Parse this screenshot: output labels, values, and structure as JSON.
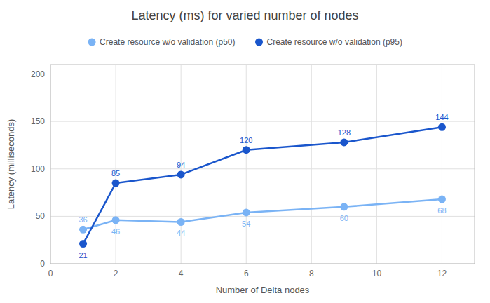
{
  "chart_data": {
    "type": "line",
    "title": "Latency (ms) for varied number of nodes",
    "x_label": "Number of Delta nodes",
    "y_label": "Latency (milliseconds)",
    "x": [
      1,
      2,
      4,
      6,
      9,
      12
    ],
    "series": [
      {
        "name": "Create resource w/o validation (p50)",
        "color": "#7ab3f5",
        "values": [
          36,
          46,
          44,
          54,
          60,
          68
        ]
      },
      {
        "name": "Create resource w/o validation (p95)",
        "color": "#1a56cc",
        "values": [
          21,
          85,
          94,
          120,
          128,
          144
        ]
      }
    ],
    "xlim": [
      0,
      13
    ],
    "xticks": [
      0,
      2,
      4,
      6,
      8,
      10,
      12
    ],
    "ylim": [
      0,
      210
    ],
    "yticks": [
      0,
      50,
      100,
      150,
      200
    ],
    "grid": true,
    "legend": "top",
    "data_labels": true,
    "marker": "circle"
  }
}
